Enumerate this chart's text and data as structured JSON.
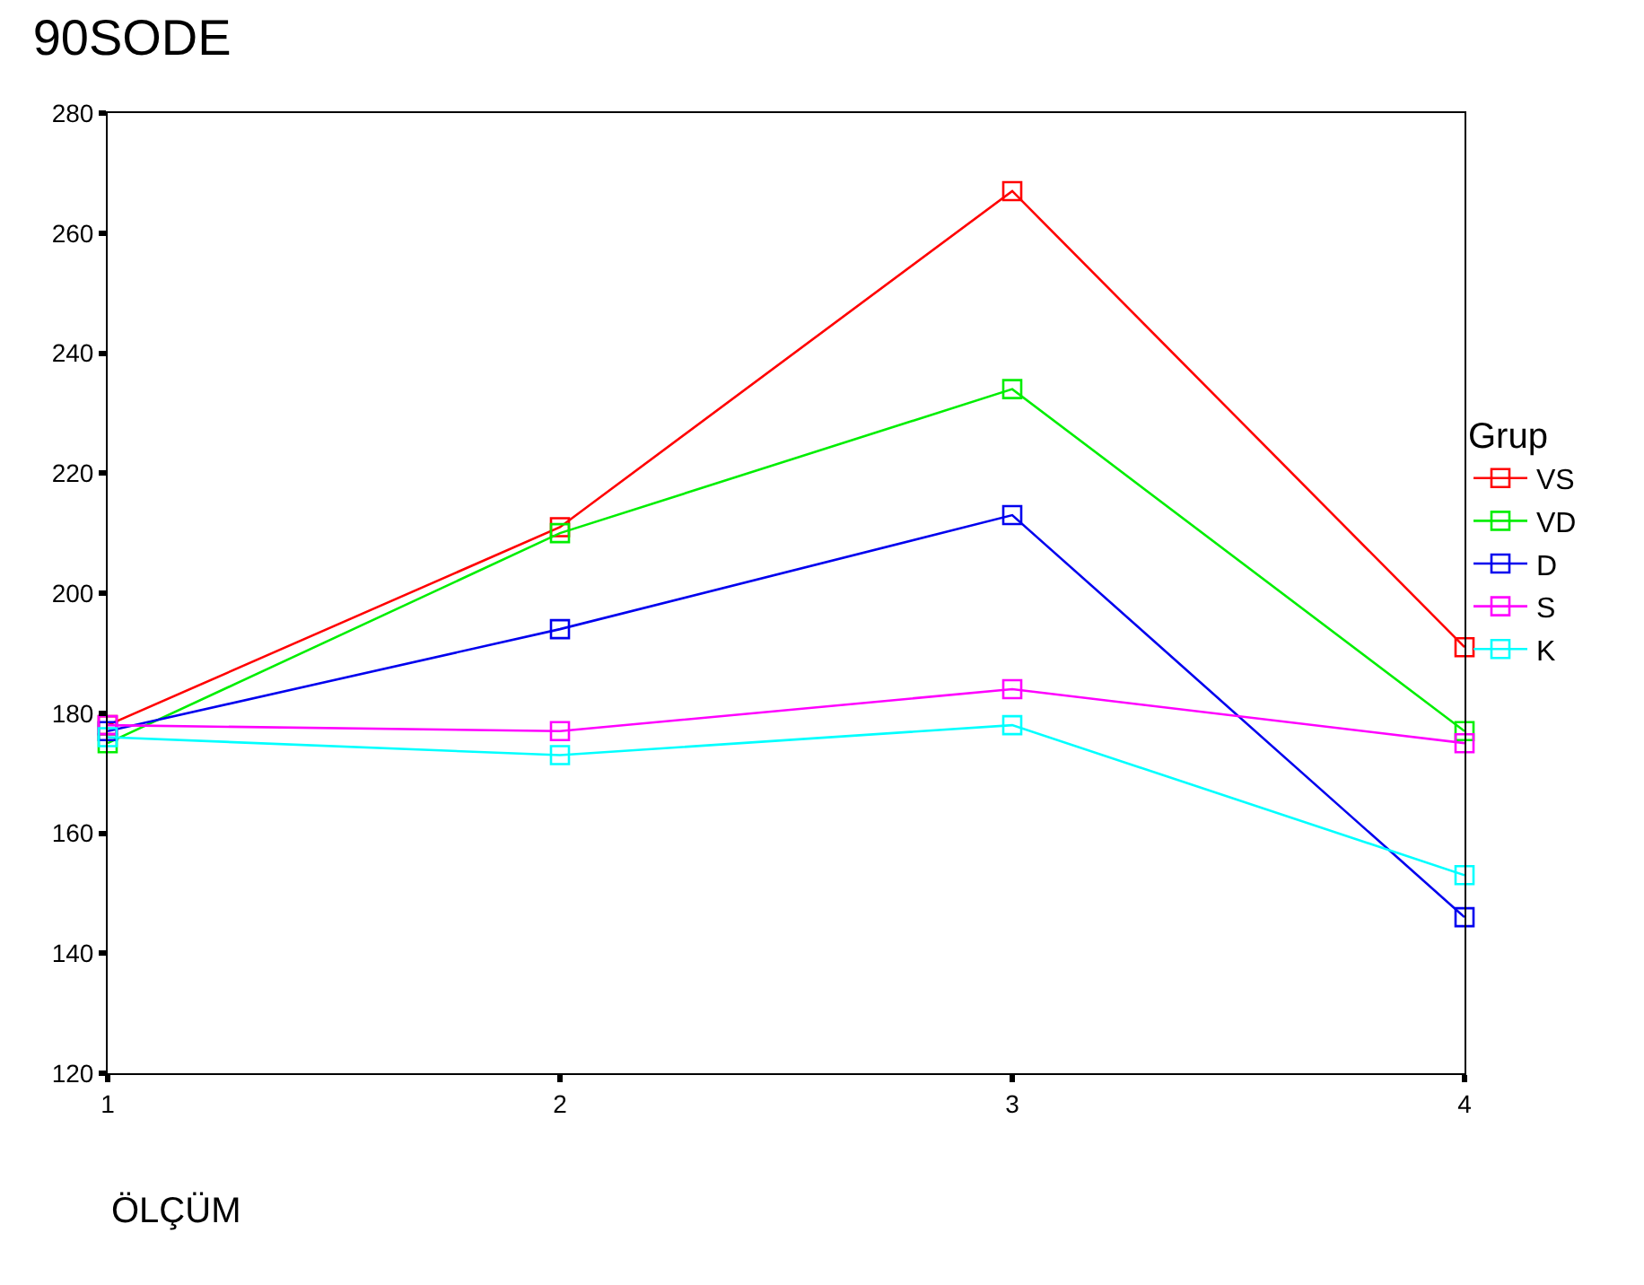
{
  "chart_data": {
    "type": "line",
    "title": "90SODE",
    "xlabel": "ÖLÇÜM",
    "legend_title": "Grup",
    "x": [
      1,
      2,
      3,
      4
    ],
    "xlim": [
      1,
      4
    ],
    "xticks": [
      1,
      2,
      3,
      4
    ],
    "ylim": [
      120,
      280
    ],
    "yticks": [
      120,
      140,
      160,
      180,
      200,
      220,
      240,
      260,
      280
    ],
    "series": [
      {
        "name": "VS",
        "color": "#ff0000",
        "values": [
          178,
          211,
          267,
          191
        ]
      },
      {
        "name": "VD",
        "color": "#00ee00",
        "values": [
          175,
          210,
          234,
          177
        ]
      },
      {
        "name": "D",
        "color": "#0000ee",
        "values": [
          177,
          194,
          213,
          146
        ]
      },
      {
        "name": "S",
        "color": "#ff00ff",
        "values": [
          178,
          177,
          184,
          175
        ]
      },
      {
        "name": "K",
        "color": "#00ffff",
        "values": [
          176,
          173,
          178,
          153
        ]
      }
    ],
    "marker": "square",
    "line_style": "solid",
    "legend": "right"
  }
}
